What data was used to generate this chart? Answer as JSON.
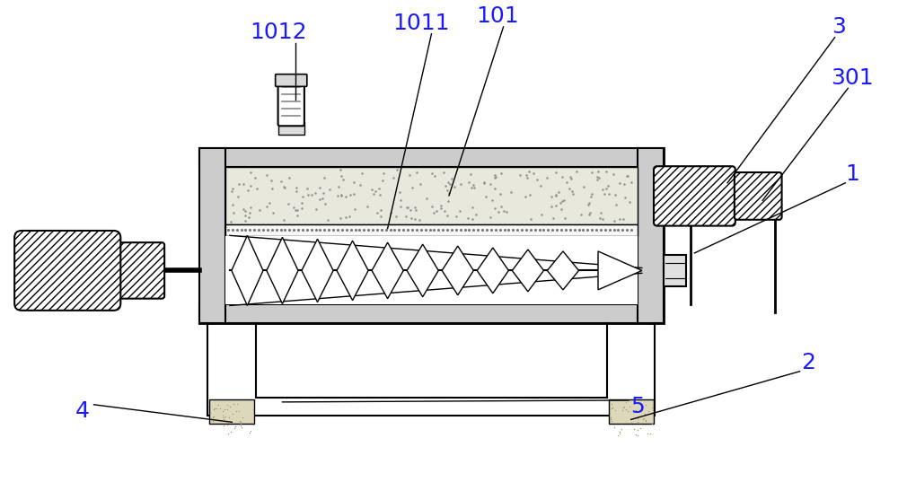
{
  "bg_color": "#ffffff",
  "line_color": "#000000",
  "label_color": "#1a1aff",
  "figsize": [
    10.0,
    5.37
  ],
  "dpi": 100,
  "label_fontsize": 18
}
